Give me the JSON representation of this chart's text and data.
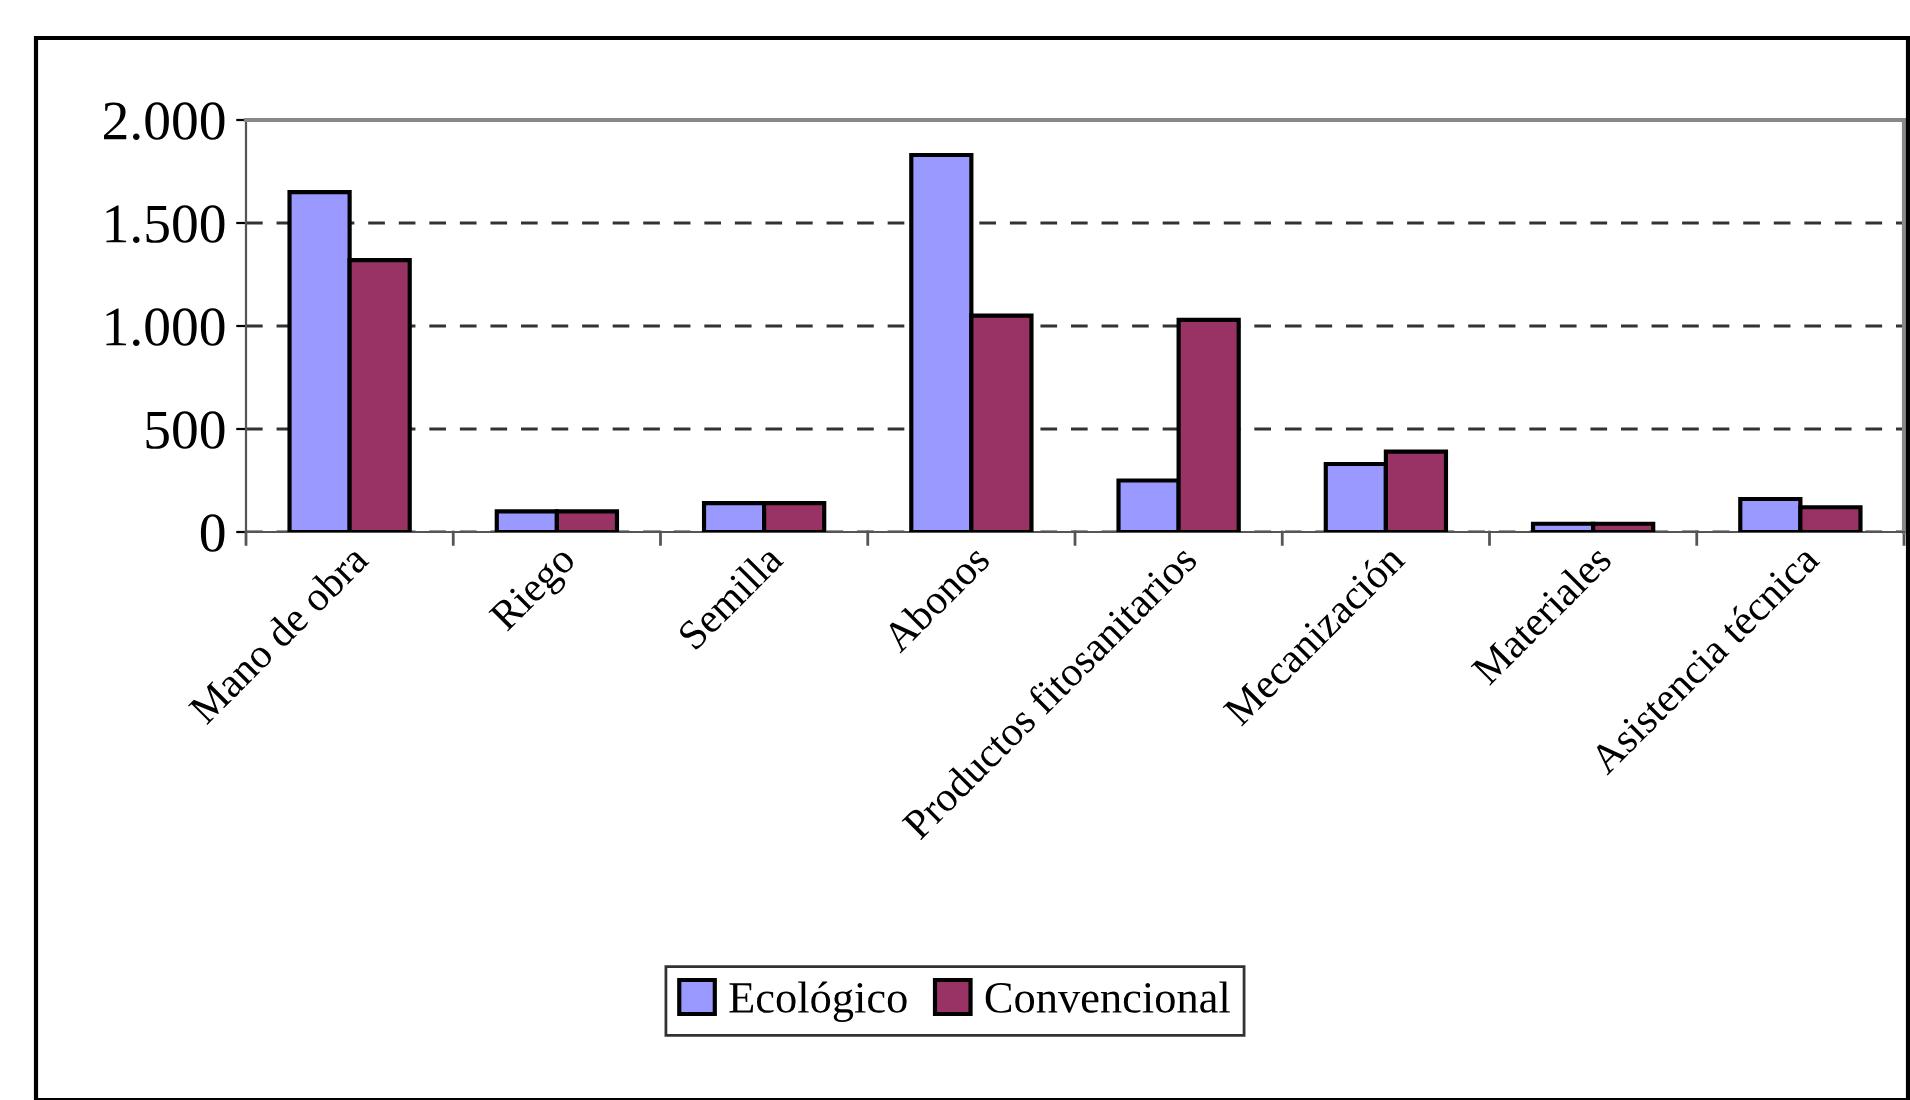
{
  "chart_data": {
    "type": "bar",
    "categories": [
      "Mano de obra",
      "Riego",
      "Semilla",
      "Abonos",
      "Productos fitosanitarios",
      "Mecanización",
      "Materiales",
      "Asistencia técnica"
    ],
    "series": [
      {
        "name": "Ecológico",
        "color": "#9999ff",
        "values": [
          1650,
          100,
          140,
          1830,
          250,
          330,
          40,
          160
        ]
      },
      {
        "name": "Convencional",
        "color": "#993366",
        "values": [
          1320,
          100,
          140,
          1050,
          1030,
          390,
          40,
          120
        ]
      }
    ],
    "ylim": [
      0,
      2000
    ],
    "yticks": [
      {
        "value": 0,
        "label": "0"
      },
      {
        "value": 500,
        "label": "500"
      },
      {
        "value": 1000,
        "label": "1.000"
      },
      {
        "value": 1500,
        "label": "1.500"
      },
      {
        "value": 2000,
        "label": "2.000"
      }
    ],
    "grid": "y",
    "legend": "bottom"
  }
}
